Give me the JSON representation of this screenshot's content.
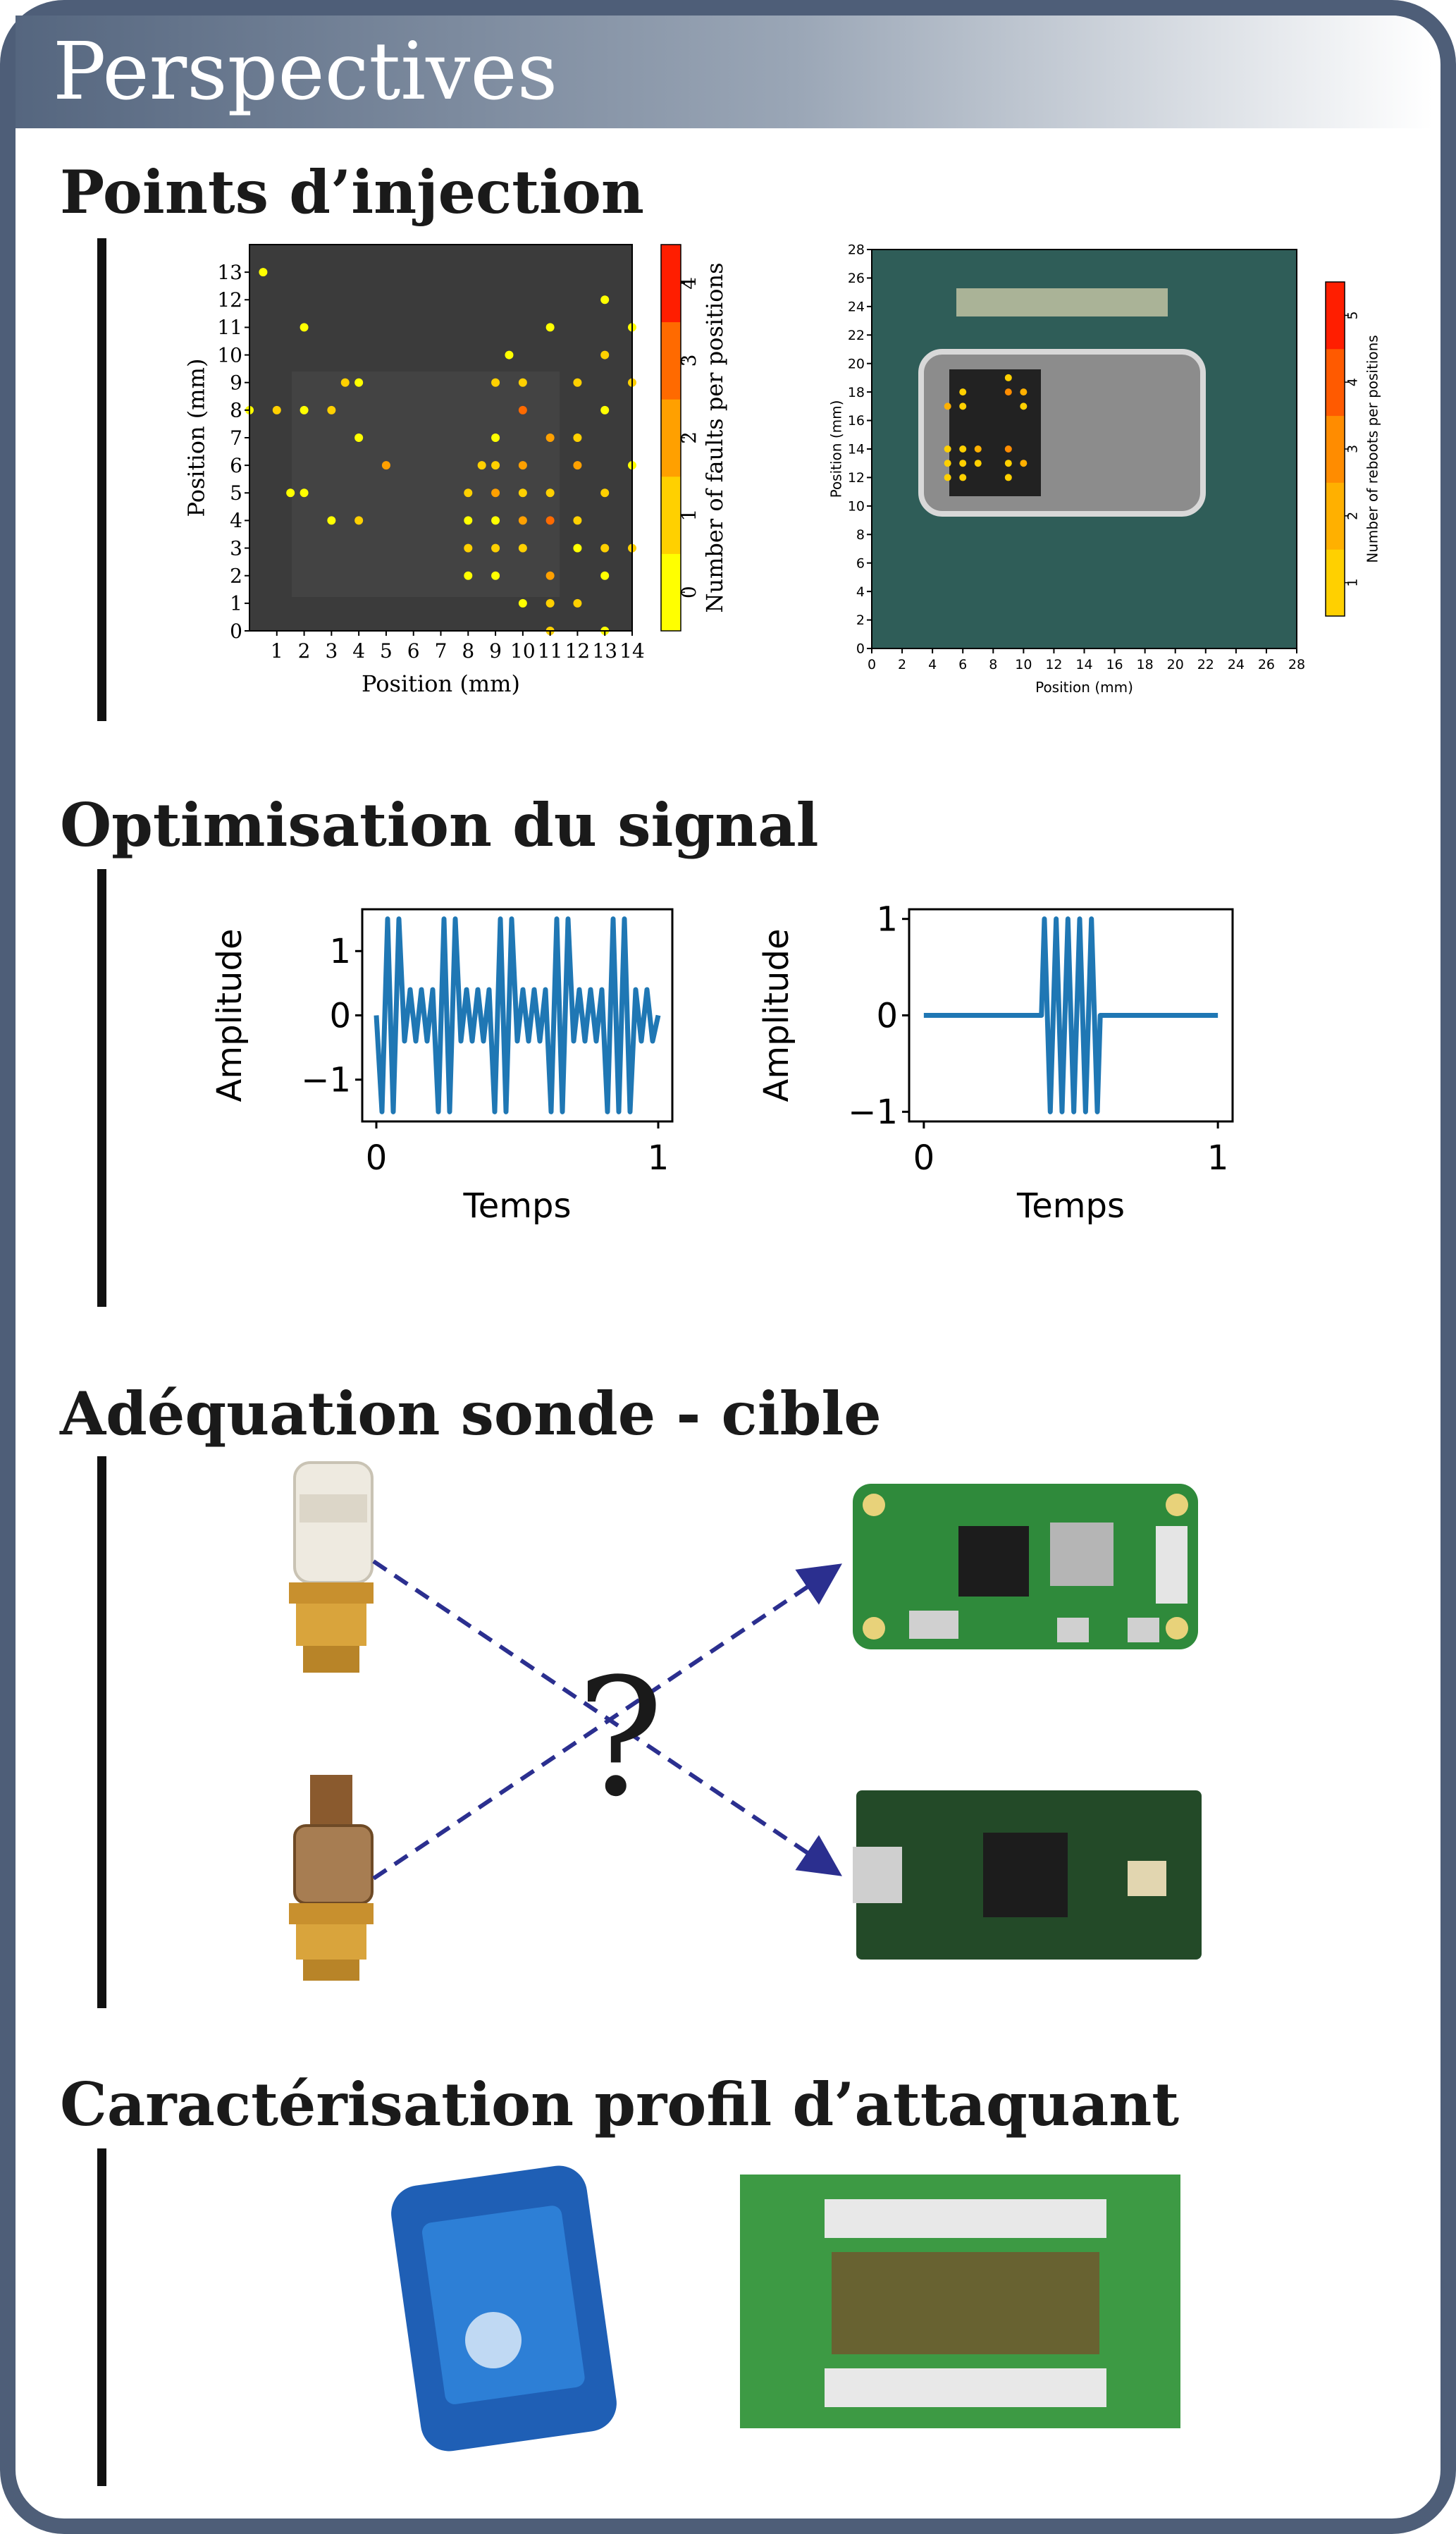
{
  "title": "Perspectives",
  "sections": [
    {
      "title": "Points d’injection",
      "charts": [
        {
          "type": "scatter",
          "xlabel": "Position (mm)",
          "ylabel": "Position (mm)",
          "xlim": [
            0,
            14
          ],
          "ylim": [
            0,
            14
          ],
          "xticks": [
            1,
            2,
            3,
            4,
            5,
            6,
            7,
            8,
            9,
            10,
            11,
            12,
            13,
            14
          ],
          "yticks": [
            0,
            1,
            2,
            3,
            4,
            5,
            6,
            7,
            8,
            9,
            10,
            11,
            12,
            13
          ],
          "x": [
            0,
            0.5,
            2,
            1,
            2,
            3,
            4,
            4,
            3.5,
            4,
            2,
            1.5,
            5,
            3,
            8,
            8,
            8,
            8,
            8.5,
            9,
            9,
            9,
            9,
            9,
            9,
            9,
            9.5,
            10,
            10,
            10,
            10,
            10,
            10,
            10,
            11,
            11,
            11,
            11,
            11,
            11,
            12,
            12,
            12,
            12,
            12,
            12,
            13,
            13,
            13,
            13,
            13,
            13,
            14,
            14,
            14,
            14,
            11,
            13
          ],
          "y": [
            8,
            13,
            11,
            8,
            8,
            8,
            9,
            7,
            9,
            4,
            5,
            5,
            6,
            4,
            5,
            4,
            3,
            2,
            6,
            5,
            6,
            4,
            3,
            2,
            7,
            9,
            10,
            8,
            6,
            5,
            4,
            3,
            1,
            9,
            7,
            5,
            4,
            2,
            1,
            11,
            9,
            6,
            4,
            3,
            1,
            7,
            8,
            5,
            3,
            2,
            10,
            12,
            3,
            6,
            9,
            11,
            0,
            0
          ],
          "values": [
            0,
            0,
            0,
            1,
            0,
            1,
            0,
            0,
            1,
            1,
            0,
            0,
            2,
            0,
            1,
            0,
            1,
            0,
            1,
            2,
            1,
            0,
            1,
            0,
            0,
            1,
            0,
            3,
            2,
            1,
            2,
            1,
            0,
            1,
            2,
            1,
            3,
            2,
            1,
            0,
            1,
            2,
            1,
            0,
            1,
            1,
            0,
            1,
            1,
            0,
            1,
            0,
            1,
            0,
            1,
            0,
            1,
            0
          ],
          "colorbar": {
            "label": "Number of faults per positions",
            "lim": [
              -0.5,
              4.5
            ],
            "ticks": [
              0,
              1,
              2,
              3,
              4
            ],
            "colors": [
              "#ffff00",
              "#ffd000",
              "#ffa000",
              "#ff6a00",
              "#ff1e00"
            ]
          }
        },
        {
          "type": "scatter",
          "xlabel": "Position (mm)",
          "ylabel": "Position (mm)",
          "xlim": [
            0,
            28
          ],
          "ylim": [
            0,
            28
          ],
          "xticks": [
            0,
            2,
            4,
            6,
            8,
            10,
            12,
            14,
            16,
            18,
            20,
            22,
            24,
            26,
            28
          ],
          "yticks": [
            0,
            2,
            4,
            6,
            8,
            10,
            12,
            14,
            16,
            18,
            20,
            22,
            24,
            26,
            28
          ],
          "x": [
            5,
            6,
            6,
            9,
            9,
            10,
            10,
            5,
            6,
            7,
            5,
            6,
            7,
            5,
            6,
            9,
            9,
            10,
            9
          ],
          "y": [
            17,
            18,
            17,
            19,
            18,
            18,
            17,
            14,
            14,
            14,
            13,
            13,
            13,
            12,
            12,
            14,
            13,
            13,
            12
          ],
          "values": [
            2,
            1,
            1,
            1,
            3,
            2,
            1,
            1,
            1,
            2,
            1,
            1,
            1,
            1,
            1,
            3,
            1,
            2,
            1
          ],
          "colorbar": {
            "label": "Number of reboots per positions",
            "lim": [
              0.5,
              5.5
            ],
            "ticks": [
              1,
              2,
              3,
              4,
              5
            ],
            "colors": [
              "#ffd000",
              "#ffb000",
              "#ff8c00",
              "#ff5a00",
              "#ff1e00"
            ]
          }
        }
      ]
    },
    {
      "title": "Optimisation du signal",
      "charts": [
        {
          "type": "line",
          "xlabel": "Temps",
          "ylabel": "Amplitude",
          "color": "#1f77b4",
          "xlim": [
            -0.05,
            1.05
          ],
          "ylim": [
            -1.65,
            1.65
          ],
          "xticks": [
            0,
            1
          ],
          "yticks": [
            {
              "value": -1,
              "label": "−1"
            },
            0,
            1
          ],
          "x": [
            0,
            0.02,
            0.04,
            0.06,
            0.08,
            0.1,
            0.12,
            0.14,
            0.16,
            0.18,
            0.2,
            0.22,
            0.24,
            0.26,
            0.28,
            0.3,
            0.32,
            0.34,
            0.36,
            0.38,
            0.4,
            0.42,
            0.44,
            0.46,
            0.48,
            0.5,
            0.52,
            0.54,
            0.56,
            0.58,
            0.6,
            0.62,
            0.64,
            0.66,
            0.68,
            0.7,
            0.72,
            0.74,
            0.76,
            0.78,
            0.8,
            0.82,
            0.84,
            0.86,
            0.88,
            0.9,
            0.92,
            0.94,
            0.96,
            0.98,
            1
          ],
          "values": [
            0,
            -1.5,
            1.5,
            -1.5,
            1.5,
            -0.4,
            0.4,
            -0.4,
            0.4,
            -0.4,
            0.4,
            -1.5,
            1.5,
            -1.5,
            1.5,
            -0.4,
            0.4,
            -0.4,
            0.4,
            -0.4,
            0.4,
            -1.5,
            1.5,
            -1.5,
            1.5,
            -0.4,
            0.4,
            -0.4,
            0.4,
            -0.4,
            0.4,
            -1.5,
            1.5,
            -1.5,
            1.5,
            -0.4,
            0.4,
            -0.4,
            0.4,
            -0.4,
            0.4,
            -1.5,
            1.5,
            -1.5,
            1.5,
            -1.5,
            0.4,
            -0.4,
            0.4,
            -0.4,
            0
          ]
        },
        {
          "type": "line",
          "xlabel": "Temps",
          "ylabel": "Amplitude",
          "color": "#1f77b4",
          "xlim": [
            -0.05,
            1.05
          ],
          "ylim": [
            -1.1,
            1.1
          ],
          "xticks": [
            0,
            1
          ],
          "yticks": [
            {
              "value": -1,
              "label": "−1"
            },
            0,
            1
          ],
          "x": [
            0,
            0.4,
            0.41,
            0.43,
            0.45,
            0.47,
            0.49,
            0.51,
            0.53,
            0.55,
            0.57,
            0.59,
            0.6,
            1
          ],
          "values": [
            0,
            0,
            1,
            -1,
            1,
            -1,
            1,
            -1,
            1,
            -1,
            1,
            -1,
            0,
            0
          ]
        }
      ]
    },
    {
      "title": "Adéquation sonde - cible",
      "annotation": "?"
    },
    {
      "title": "Caractérisation profil d’attaquant"
    }
  ]
}
